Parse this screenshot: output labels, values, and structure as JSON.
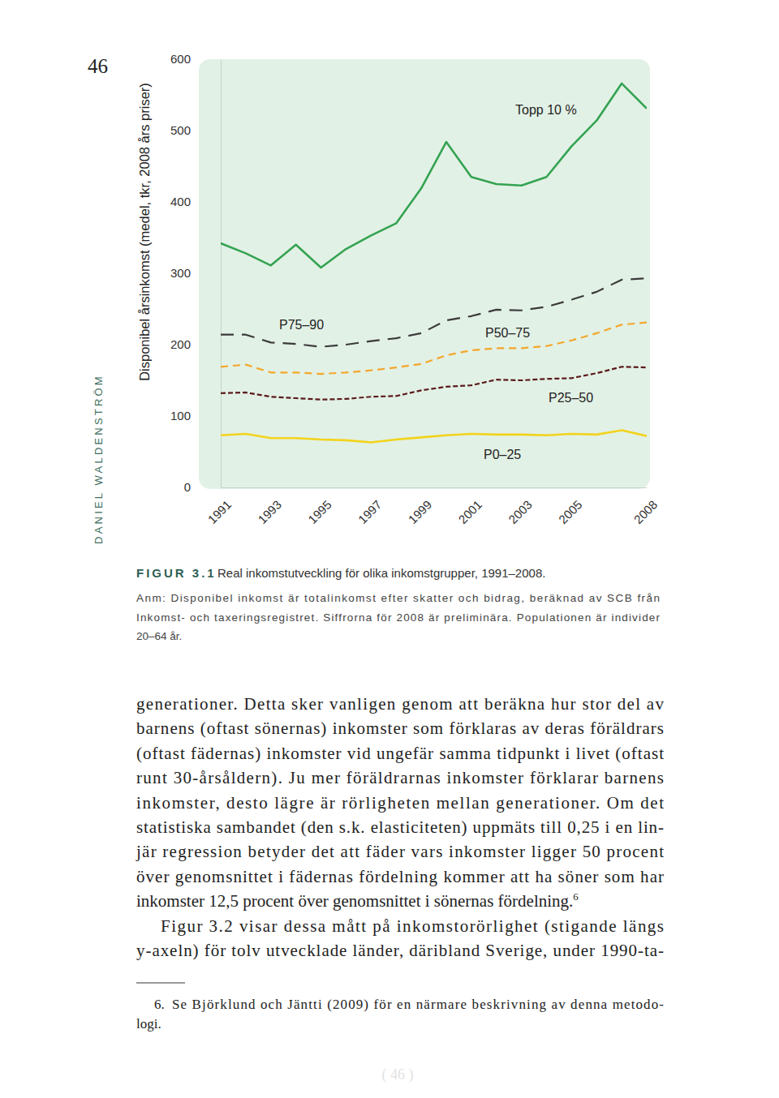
{
  "page": {
    "number": "46",
    "author": "DANIEL WALDENSTRÖM",
    "footer": "( 46 )"
  },
  "chart_data": {
    "type": "line",
    "y_label": "Disponibel årsinkomst (medel, tkr, 2008 års priser)",
    "x": [
      1991,
      1992,
      1993,
      1994,
      1995,
      1996,
      1997,
      1998,
      1999,
      2000,
      2001,
      2002,
      2003,
      2004,
      2005,
      2006,
      2007,
      2008
    ],
    "xlim": [
      1991,
      2008
    ],
    "xticks": [
      1991,
      1993,
      1995,
      1997,
      1999,
      2001,
      2003,
      2005,
      2008
    ],
    "ylim": [
      0,
      600
    ],
    "yticks": [
      0,
      100,
      200,
      300,
      400,
      500,
      600
    ],
    "grid": false,
    "series": [
      {
        "name": "Topp 10 %",
        "color": "#34a352",
        "line_style": "solid",
        "values": [
          342,
          328,
          311,
          340,
          308,
          334,
          353,
          370,
          419,
          484,
          435,
          425,
          423,
          435,
          478,
          514,
          566,
          531
        ]
      },
      {
        "name": "P75–90",
        "color": "#3a3a3a",
        "line_style": "long-dashed",
        "values": [
          214,
          214,
          203,
          201,
          197,
          200,
          205,
          209,
          216,
          234,
          240,
          249,
          248,
          253,
          263,
          274,
          291,
          293
        ]
      },
      {
        "name": "P50–75",
        "color": "#f4a62a",
        "line_style": "dashed",
        "values": [
          169,
          172,
          161,
          161,
          159,
          161,
          164,
          168,
          173,
          185,
          192,
          195,
          195,
          198,
          206,
          216,
          228,
          231
        ]
      },
      {
        "name": "P25–50",
        "color": "#5b1c1c",
        "line_style": "short-dashed",
        "values": [
          132,
          133,
          127,
          125,
          123,
          124,
          127,
          128,
          136,
          141,
          143,
          151,
          150,
          152,
          153,
          160,
          169,
          168
        ]
      },
      {
        "name": "P0–25",
        "color": "#f2d31c",
        "line_style": "solid",
        "values": [
          73,
          75,
          69,
          69,
          67,
          66,
          63,
          67,
          70,
          73,
          75,
          74,
          74,
          73,
          75,
          74,
          80,
          72
        ]
      }
    ]
  },
  "caption": {
    "label": "FIGUR 3.1",
    "title": "Real inkomstutveckling för olika inkomstgrupper, 1991–2008.",
    "note": [
      "Anm: Disponibel inkomst är totalinkomst efter skatter och bidrag, beräknad av SCB från",
      "Inkomst- och taxeringsregistret. Siffrorna för 2008 är preliminära. Populationen är individer",
      "20–64 år."
    ]
  },
  "body": {
    "paragraphs": [
      {
        "lines": [
          "generationer. Detta sker vanligen genom att beräkna hur stor del av",
          "barnens (oftast sönernas) inkomster som förklaras av deras föräldrars",
          "(oftast fädernas) inkomster vid ungefär samma tidpunkt i livet (oftast",
          "runt 30-årsåldern). Ju mer föräldrarnas inkomster förklarar barnens",
          "inkomster, desto lägre är rörligheten mellan generationer. Om det",
          "statistiska sambandet (den s.k. elasticiteten) uppmäts till 0,25 i en lin-",
          "jär regression betyder det att fäder vars inkomster ligger 50 procent",
          "över genomsnittet i fädernas fördelning kommer att ha söner som har",
          "inkomster 12,5 procent över genomsnittet i sönernas fördelning."
        ],
        "note_ref": "6"
      },
      {
        "lines": [
          "Figur 3.2 visar dessa mått på inkomstorörlighet (stigande längs",
          "y-axeln) för tolv utvecklade länder, däribland Sverige, under 1990-ta-"
        ]
      }
    ]
  },
  "footnote": {
    "number": "6.",
    "lines": [
      "Se Björklund och Jäntti (2009) för en närmare beskrivning av denna metodo-",
      "logi."
    ]
  }
}
